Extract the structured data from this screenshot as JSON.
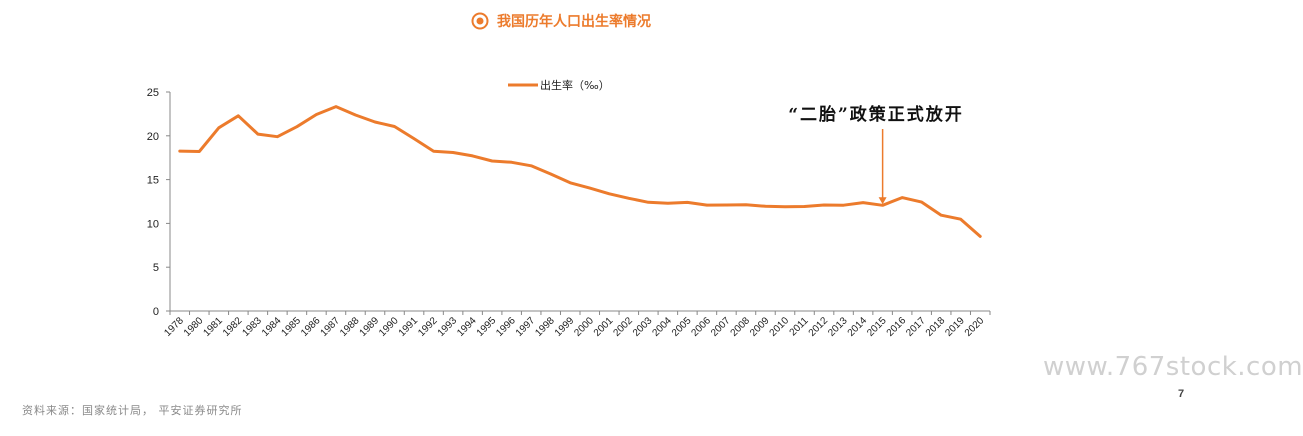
{
  "page": {
    "title": "我国历年人口出生率情况",
    "source_note": "资料来源：国家统计局， 平安证券研究所",
    "watermark": "www.767stock.com",
    "page_number": "7",
    "accent_color": "#ec7b2c",
    "title_icon": "target-icon"
  },
  "chart_data": {
    "type": "line",
    "title": "",
    "xlabel": "",
    "ylabel": "",
    "ylim": [
      0,
      25
    ],
    "yticks": [
      0,
      5,
      10,
      15,
      20,
      25
    ],
    "grid": false,
    "legend_position": "top-center",
    "x": [
      "1978",
      "1980",
      "1981",
      "1982",
      "1983",
      "1984",
      "1985",
      "1986",
      "1987",
      "1988",
      "1989",
      "1990",
      "1991",
      "1992",
      "1993",
      "1994",
      "1995",
      "1996",
      "1997",
      "1998",
      "1999",
      "2000",
      "2001",
      "2002",
      "2003",
      "2004",
      "2005",
      "2006",
      "2007",
      "2008",
      "2009",
      "2010",
      "2011",
      "2012",
      "2013",
      "2014",
      "2015",
      "2016",
      "2017",
      "2018",
      "2019",
      "2020"
    ],
    "series": [
      {
        "name": "出生率（‰）",
        "color": "#ec7b2c",
        "values": [
          18.25,
          18.21,
          20.91,
          22.28,
          20.19,
          19.9,
          21.04,
          22.43,
          23.33,
          22.37,
          21.58,
          21.06,
          19.68,
          18.24,
          18.09,
          17.7,
          17.12,
          16.98,
          16.57,
          15.64,
          14.64,
          14.03,
          13.38,
          12.86,
          12.41,
          12.29,
          12.4,
          12.09,
          12.1,
          12.14,
          11.95,
          11.9,
          11.93,
          12.1,
          12.08,
          12.37,
          12.07,
          12.95,
          12.43,
          10.94,
          10.48,
          8.52
        ]
      }
    ],
    "annotation": {
      "text": "“二胎”政策正式放开",
      "target_x": "2015",
      "target_y": 12.07
    }
  }
}
